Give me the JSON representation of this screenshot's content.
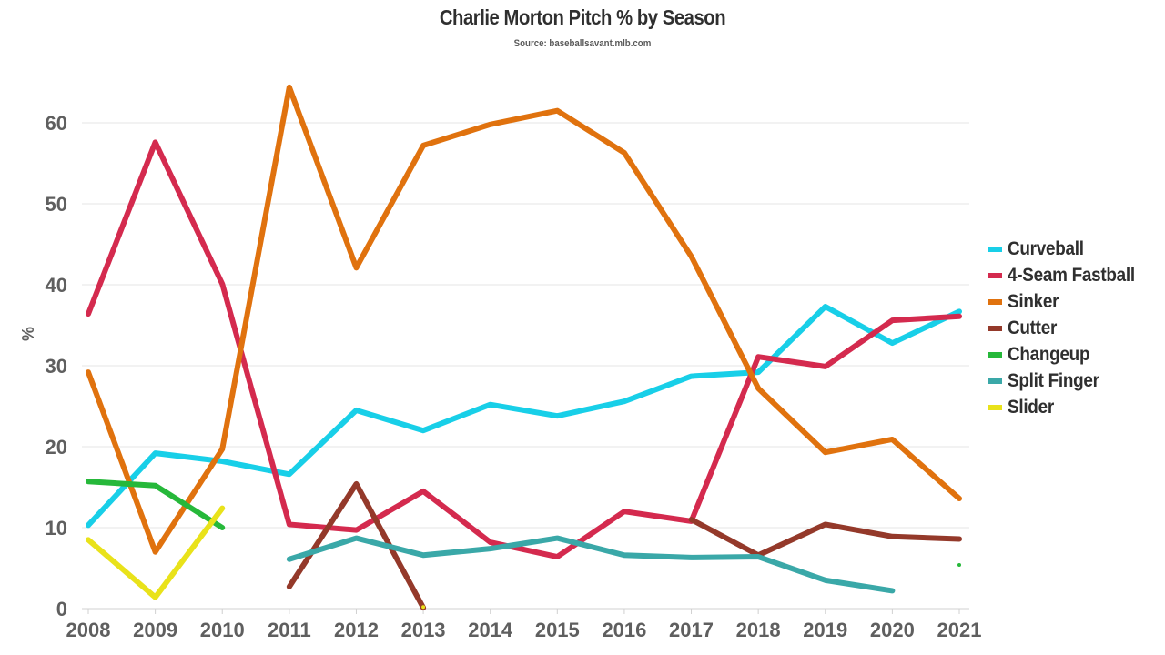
{
  "chart_data": {
    "type": "line",
    "title": "Charlie Morton Pitch % by Season",
    "subtitle": "Source: baseballsavant.mlb.com",
    "xlabel": "",
    "ylabel": "%",
    "ylim": [
      0,
      65
    ],
    "yticks": [
      0,
      10,
      20,
      30,
      40,
      50,
      60
    ],
    "grid": true,
    "legend_position": "right",
    "x": [
      2008,
      2009,
      2010,
      2011,
      2012,
      2013,
      2014,
      2015,
      2016,
      2017,
      2018,
      2019,
      2020,
      2021
    ],
    "xtick_labels": [
      "2008",
      "2009",
      "2010",
      "2011",
      "2012",
      "2013",
      "2014",
      "2015",
      "2016",
      "2017",
      "2018",
      "2019",
      "2020",
      "2021"
    ],
    "series": [
      {
        "name": "Curveball",
        "color": "#18cfe8",
        "values": [
          10.3,
          19.2,
          18.2,
          16.6,
          24.5,
          22.0,
          25.2,
          23.8,
          25.6,
          28.7,
          29.2,
          37.3,
          32.8,
          36.7
        ]
      },
      {
        "name": "4-Seam Fastball",
        "color": "#d42a4e",
        "values": [
          36.4,
          57.6,
          40.1,
          10.4,
          9.7,
          14.5,
          8.2,
          6.4,
          12.0,
          10.8,
          31.1,
          29.9,
          35.6,
          36.1
        ]
      },
      {
        "name": "Sinker",
        "color": "#e0720e",
        "values": [
          29.2,
          7.0,
          19.7,
          64.4,
          42.1,
          57.2,
          59.8,
          61.5,
          56.3,
          43.5,
          27.2,
          19.3,
          20.9,
          13.6
        ]
      },
      {
        "name": "Cutter",
        "color": "#94392a",
        "values": [
          null,
          null,
          null,
          2.7,
          15.4,
          0.1,
          null,
          null,
          null,
          11.0,
          6.6,
          10.4,
          8.9,
          8.6
        ]
      },
      {
        "name": "Changeup",
        "color": "#26b83a",
        "values": [
          15.7,
          15.2,
          10.0,
          null,
          null,
          null,
          null,
          null,
          null,
          null,
          null,
          null,
          null,
          5.4
        ]
      },
      {
        "name": "Split Finger",
        "color": "#3aa8a8",
        "values": [
          null,
          null,
          null,
          6.1,
          8.7,
          6.6,
          7.4,
          8.7,
          6.6,
          6.3,
          6.4,
          3.5,
          2.2,
          null
        ]
      },
      {
        "name": "Slider",
        "color": "#e9e21a",
        "values": [
          8.5,
          1.4,
          12.4,
          null,
          null,
          0.2,
          null,
          null,
          null,
          null,
          null,
          null,
          null,
          null
        ]
      }
    ]
  }
}
